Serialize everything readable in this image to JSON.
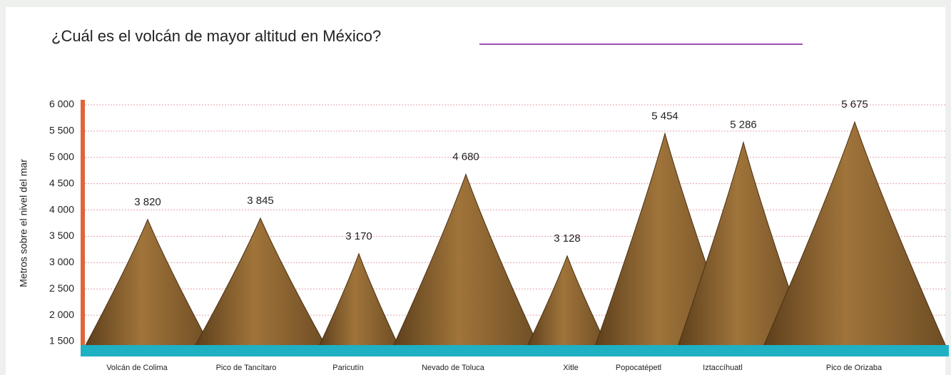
{
  "chart_data": {
    "type": "mountain",
    "title": "¿Cuál es el volcán de mayor altitud en México?",
    "y_label": "Metros sobre el nivel del mar",
    "categories": [
      "Volcán de Colima",
      "Pico de Tancítaro",
      "Paricutín",
      "Nevado de Toluca",
      "Xitle",
      "Popocatépetl",
      "Iztaccíhuatl",
      "Pico de Orizaba"
    ],
    "values": [
      3820,
      3845,
      3170,
      4680,
      3128,
      5454,
      5286,
      5675
    ],
    "value_labels": [
      "3 820",
      "3 845",
      "3 170",
      "4 680",
      "3 128",
      "5 454",
      "5 286",
      "5 675"
    ],
    "color": "#8a6230",
    "ylim": [
      1500,
      6000
    ],
    "yticks": [
      {
        "value": 1500,
        "label": "1 500"
      },
      {
        "value": 2000,
        "label": "2 000"
      },
      {
        "value": 2500,
        "label": "2 500"
      },
      {
        "value": 3000,
        "label": "3 000"
      },
      {
        "value": 3500,
        "label": "3 500"
      },
      {
        "value": 4000,
        "label": "4 000"
      },
      {
        "value": 4500,
        "label": "4 500"
      },
      {
        "value": 5000,
        "label": "5 000"
      },
      {
        "value": 5500,
        "label": "5 500"
      },
      {
        "value": 6000,
        "label": "6 000"
      }
    ],
    "grid": true
  }
}
